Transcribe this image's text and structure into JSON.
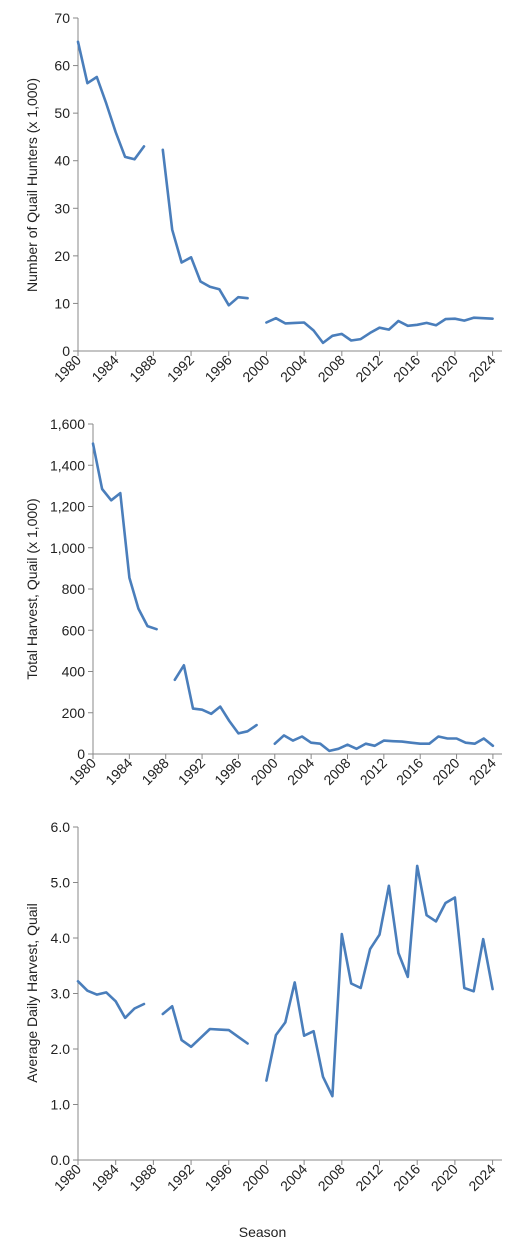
{
  "line_color": "#4a7ebb",
  "xlabel": "Season",
  "chart_data": [
    {
      "type": "line",
      "title": "",
      "ylabel": "Number of Quail Hunters (x 1,000)",
      "ylim": [
        0,
        70
      ],
      "yticks": [
        0,
        10,
        20,
        30,
        40,
        50,
        60,
        70
      ],
      "ytick_labels": [
        "0",
        "10",
        "20",
        "30",
        "40",
        "50",
        "60",
        "70"
      ],
      "xlim": [
        1980,
        2025
      ],
      "xticks": [
        1980,
        1984,
        1988,
        1992,
        1996,
        2000,
        2004,
        2008,
        2012,
        2016,
        2020,
        2024
      ],
      "xtick_labels": [
        "1980",
        "1984",
        "1988",
        "1992",
        "1996",
        "2000",
        "2004",
        "2008",
        "2012",
        "2016",
        "2020",
        "2024"
      ],
      "grid": false,
      "series": [
        {
          "segments": [
            [
              [
                1980,
                65
              ],
              [
                1981,
                56.3
              ],
              [
                1982,
                57.6
              ],
              [
                1983,
                52
              ],
              [
                1984,
                46
              ],
              [
                1985,
                40.8
              ],
              [
                1986,
                40.3
              ],
              [
                1987,
                43
              ]
            ],
            [
              [
                1989,
                42.3
              ],
              [
                1990,
                25.5
              ],
              [
                1991,
                18.6
              ],
              [
                1992,
                19.7
              ],
              [
                1993,
                14.6
              ],
              [
                1994,
                13.5
              ],
              [
                1995,
                13
              ],
              [
                1996,
                9.6
              ],
              [
                1997,
                11.3
              ],
              [
                1998,
                11.1
              ]
            ],
            [
              [
                2000,
                6
              ],
              [
                2001,
                6.9
              ],
              [
                2002,
                5.8
              ],
              [
                2003,
                5.9
              ],
              [
                2004,
                6
              ],
              [
                2005,
                4.3
              ],
              [
                2006,
                1.7
              ],
              [
                2007,
                3.2
              ],
              [
                2008,
                3.6
              ],
              [
                2009,
                2.2
              ],
              [
                2010,
                2.5
              ],
              [
                2011,
                3.8
              ],
              [
                2012,
                4.9
              ],
              [
                2013,
                4.5
              ],
              [
                2014,
                6.3
              ],
              [
                2015,
                5.3
              ],
              [
                2016,
                5.5
              ],
              [
                2017,
                5.9
              ],
              [
                2018,
                5.4
              ],
              [
                2019,
                6.7
              ],
              [
                2020,
                6.8
              ],
              [
                2021,
                6.4
              ],
              [
                2022,
                7
              ],
              [
                2023,
                6.9
              ],
              [
                2024,
                6.8
              ]
            ]
          ]
        }
      ]
    },
    {
      "type": "line",
      "title": "",
      "ylabel": "Total Harvest, Quail (x 1,000)",
      "ylim": [
        0,
        1600
      ],
      "yticks": [
        0,
        200,
        400,
        600,
        800,
        1000,
        1200,
        1400,
        1600
      ],
      "ytick_labels": [
        "0",
        "200",
        "400",
        "600",
        "800",
        "1,000",
        "1,200",
        "1,400",
        "1,600"
      ],
      "xlim": [
        1980,
        2025
      ],
      "xticks": [
        1980,
        1984,
        1988,
        1992,
        1996,
        2000,
        2004,
        2008,
        2012,
        2016,
        2020,
        2024
      ],
      "xtick_labels": [
        "1980",
        "1984",
        "1988",
        "1992",
        "1996",
        "2000",
        "2004",
        "2008",
        "2012",
        "2016",
        "2020",
        "2024"
      ],
      "grid": false,
      "series": [
        {
          "segments": [
            [
              [
                1980,
                1505
              ],
              [
                1981,
                1285
              ],
              [
                1982,
                1230
              ],
              [
                1983,
                1265
              ],
              [
                1984,
                855
              ],
              [
                1985,
                705
              ],
              [
                1986,
                620
              ],
              [
                1987,
                605
              ]
            ],
            [
              [
                1989,
                360
              ],
              [
                1990,
                430
              ],
              [
                1991,
                220
              ],
              [
                1992,
                215
              ],
              [
                1993,
                195
              ],
              [
                1994,
                230
              ],
              [
                1995,
                160
              ],
              [
                1996,
                100
              ],
              [
                1997,
                110
              ],
              [
                1998,
                140
              ]
            ],
            [
              [
                2000,
                50
              ],
              [
                2001,
                90
              ],
              [
                2002,
                65
              ],
              [
                2003,
                85
              ],
              [
                2004,
                55
              ],
              [
                2005,
                50
              ],
              [
                2006,
                15
              ],
              [
                2007,
                25
              ],
              [
                2008,
                45
              ],
              [
                2009,
                25
              ],
              [
                2010,
                50
              ],
              [
                2011,
                40
              ],
              [
                2012,
                65
              ],
              [
                2013,
                62
              ],
              [
                2014,
                60
              ],
              [
                2015,
                55
              ],
              [
                2016,
                50
              ],
              [
                2017,
                50
              ],
              [
                2018,
                85
              ],
              [
                2019,
                75
              ],
              [
                2020,
                75
              ],
              [
                2021,
                55
              ],
              [
                2022,
                50
              ],
              [
                2023,
                75
              ],
              [
                2024,
                40
              ]
            ]
          ]
        }
      ]
    },
    {
      "type": "line",
      "title": "",
      "ylabel": "Average Daily Harvest, Quail",
      "xlabel": "Season",
      "ylim": [
        0,
        6
      ],
      "yticks": [
        0,
        1,
        2,
        3,
        4,
        5,
        6
      ],
      "ytick_labels": [
        "0.0",
        "1.0",
        "2.0",
        "3.0",
        "4.0",
        "5.0",
        "6.0"
      ],
      "xlim": [
        1980,
        2025
      ],
      "xticks": [
        1980,
        1984,
        1988,
        1992,
        1996,
        2000,
        2004,
        2008,
        2012,
        2016,
        2020,
        2024
      ],
      "xtick_labels": [
        "1980",
        "1984",
        "1988",
        "1992",
        "1996",
        "2000",
        "2004",
        "2008",
        "2012",
        "2016",
        "2020",
        "2024"
      ],
      "grid": false,
      "series": [
        {
          "segments": [
            [
              [
                1980,
                3.22
              ],
              [
                1981,
                3.05
              ],
              [
                1982,
                2.98
              ],
              [
                1983,
                3.02
              ],
              [
                1984,
                2.86
              ],
              [
                1985,
                2.56
              ],
              [
                1986,
                2.73
              ],
              [
                1987,
                2.81
              ]
            ],
            [
              [
                1989,
                2.63
              ],
              [
                1990,
                2.77
              ],
              [
                1991,
                2.16
              ],
              [
                1992,
                2.04
              ],
              [
                1993,
                2.2
              ],
              [
                1994,
                2.36
              ],
              [
                1995,
                2.35
              ],
              [
                1996,
                2.34
              ],
              [
                1997,
                2.22
              ],
              [
                1998,
                2.1
              ]
            ],
            [
              [
                2000,
                1.43
              ],
              [
                2001,
                2.25
              ],
              [
                2002,
                2.48
              ],
              [
                2003,
                3.2
              ],
              [
                2004,
                2.24
              ],
              [
                2005,
                2.32
              ],
              [
                2006,
                1.5
              ],
              [
                2007,
                1.15
              ],
              [
                2008,
                4.07
              ],
              [
                2009,
                3.18
              ],
              [
                2010,
                3.1
              ],
              [
                2011,
                3.8
              ],
              [
                2012,
                4.06
              ],
              [
                2013,
                4.94
              ],
              [
                2014,
                3.73
              ],
              [
                2015,
                3.3
              ],
              [
                2016,
                5.3
              ],
              [
                2017,
                4.41
              ],
              [
                2018,
                4.3
              ],
              [
                2019,
                4.63
              ],
              [
                2020,
                4.73
              ],
              [
                2021,
                3.1
              ],
              [
                2022,
                3.04
              ],
              [
                2023,
                3.98
              ],
              [
                2024,
                3.08
              ]
            ]
          ]
        }
      ]
    }
  ]
}
